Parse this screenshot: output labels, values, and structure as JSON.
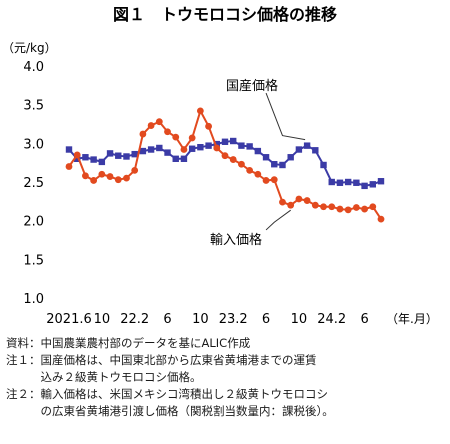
{
  "chart_data": {
    "type": "line",
    "title": "図１　トウモロコシ価格の推移",
    "ylabel": "（元/kg）",
    "xlabel": "（年.月）",
    "ylim": [
      1.0,
      4.0
    ],
    "yticks": [
      "1.0",
      "1.5",
      "2.0",
      "2.5",
      "3.0",
      "3.5",
      "4.0"
    ],
    "grid": false,
    "xtick_labels": [
      {
        "i": 0,
        "text": "2021.6"
      },
      {
        "i": 4,
        "text": "10"
      },
      {
        "i": 8,
        "text": "22.2"
      },
      {
        "i": 12,
        "text": "6"
      },
      {
        "i": 16,
        "text": "10"
      },
      {
        "i": 20,
        "text": "23.2"
      },
      {
        "i": 24,
        "text": "6"
      },
      {
        "i": 28,
        "text": "10"
      },
      {
        "i": 32,
        "text": "24.2"
      },
      {
        "i": 36,
        "text": "6"
      }
    ],
    "series": [
      {
        "name": "国産価格",
        "color": "#3b3ba6",
        "marker": "square",
        "values": [
          2.92,
          2.8,
          2.82,
          2.79,
          2.76,
          2.87,
          2.84,
          2.83,
          2.86,
          2.9,
          2.92,
          2.94,
          2.88,
          2.8,
          2.8,
          2.93,
          2.95,
          2.97,
          2.99,
          3.02,
          3.03,
          2.97,
          2.96,
          2.9,
          2.82,
          2.73,
          2.72,
          2.82,
          2.92,
          2.97,
          2.91,
          2.72,
          2.5,
          2.49,
          2.5,
          2.49,
          2.45,
          2.47,
          2.51
        ]
      },
      {
        "name": "輸入価格",
        "color": "#e24a1f",
        "marker": "circle",
        "values": [
          2.7,
          2.85,
          2.58,
          2.52,
          2.6,
          2.57,
          2.53,
          2.55,
          2.65,
          3.12,
          3.23,
          3.28,
          3.15,
          3.08,
          2.92,
          3.07,
          3.42,
          3.22,
          2.94,
          2.84,
          2.79,
          2.73,
          2.65,
          2.6,
          2.52,
          2.53,
          2.24,
          2.2,
          2.28,
          2.26,
          2.2,
          2.18,
          2.18,
          2.15,
          2.14,
          2.17,
          2.15,
          2.18,
          2.02
        ]
      }
    ]
  },
  "notes": [
    "資料：中国農業農村部のデータを基にALIC作成",
    "注１：国産価格は、中国東北部から広東省黄埔港までの運賃",
    "　　　込み２級黄トウモロコシ価格。",
    "注２：輸入価格は、米国メキシコ湾積出し２級黄トウモロコシ",
    "　　　の広東省黄埔港引渡し価格（関税割当数量内：課税後）。"
  ]
}
